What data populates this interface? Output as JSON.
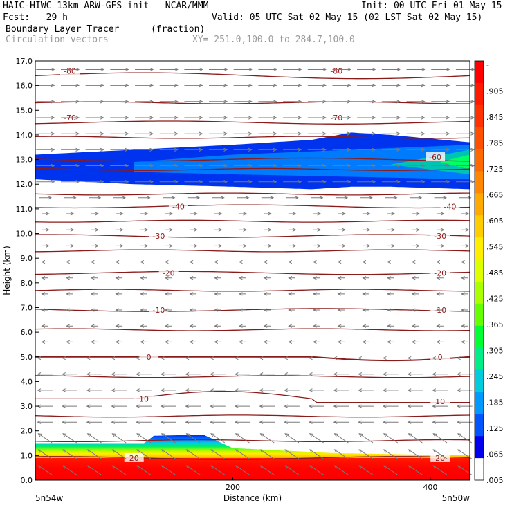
{
  "header": {
    "line1_left": "HAIC-HIWC 13km ARW-GFS init   NCAR/MMM",
    "line1_right": "Init: 00 UTC Fri 01 May 15",
    "fcst": "Fcst:   29 h",
    "valid": "Valid: 05 UTC Sat 02 May 15 (02 LST Sat 02 May 15)",
    "field": "Boundary Layer Tracer",
    "units": "(fraction)",
    "field2": "Circulation vectors",
    "xy": "XY= 251.0,100.0 to 284.7,100.0"
  },
  "chart_data": {
    "type": "heatmap",
    "xlabel": "Distance (km)",
    "ylabel": "Height (km)",
    "xlim": [
      0,
      440
    ],
    "ylim": [
      0,
      17
    ],
    "x_ticks": [
      "200",
      "400"
    ],
    "x_tick_values": [
      200,
      400
    ],
    "x_end_labels": [
      "5n54w",
      "5n50w"
    ],
    "y_ticks": [
      "0.0",
      "1.0",
      "2.0",
      "3.0",
      "4.0",
      "5.0",
      "6.0",
      "7.0",
      "8.0",
      "9.0",
      "10.0",
      "11.0",
      "12.0",
      "13.0",
      "14.0",
      "15.0",
      "16.0",
      "17.0"
    ],
    "colorbar": {
      "labels": [
        "-",
        ".905",
        ".845",
        ".785",
        ".725",
        ".665",
        ".605",
        ".545",
        ".485",
        ".425",
        ".365",
        ".305",
        ".245",
        ".185",
        ".125",
        ".065",
        ".005"
      ],
      "colors": [
        "#ff0000",
        "#ff1a00",
        "#ff3300",
        "#ff5000",
        "#ff6a00",
        "#ff8800",
        "#ffaa00",
        "#ffcc00",
        "#ffee00",
        "#ddff00",
        "#aaff00",
        "#66ff00",
        "#00ff33",
        "#00ee88",
        "#00ccdd",
        "#0099ff",
        "#0055ff",
        "#0000ee",
        "#ffffff"
      ]
    },
    "temperature_contours": {
      "unit": "C",
      "levels": [
        -80,
        -70,
        -60,
        -40,
        -30,
        -20,
        -10,
        0,
        10,
        20
      ],
      "labels": [
        "-80",
        "-80",
        "-70",
        "-70",
        "-60",
        "-40",
        "-40",
        "-30",
        "-30",
        "-20",
        "-20",
        "-10",
        "-10",
        "0",
        "0",
        "10",
        "10",
        "20",
        "20"
      ],
      "heights_km": {
        "-80": 16.4,
        "-70": 14.5,
        "-60": 13.0,
        "-40": 11.1,
        "-30": 9.9,
        "-20": 8.4,
        "-10": 6.9,
        "0": 5.0,
        "10": 3.3,
        "20": 0.9
      }
    },
    "tracer_layers": [
      {
        "name": "upper layer",
        "x": [
          0,
          100,
          200,
          280,
          320,
          360,
          440
        ],
        "bottom_km": [
          12.2,
          12.0,
          11.9,
          11.8,
          11.9,
          11.9,
          11.8
        ],
        "top_km": [
          13.2,
          13.4,
          13.6,
          13.8,
          14.1,
          14.0,
          13.7
        ],
        "max_value": 0.2
      },
      {
        "name": "boundary layer",
        "x": [
          0,
          110,
          120,
          170,
          200,
          300,
          440
        ],
        "top_km": [
          1.5,
          1.5,
          1.8,
          1.85,
          1.3,
          1.1,
          1.0
        ],
        "max_value": 1.0
      }
    ]
  }
}
